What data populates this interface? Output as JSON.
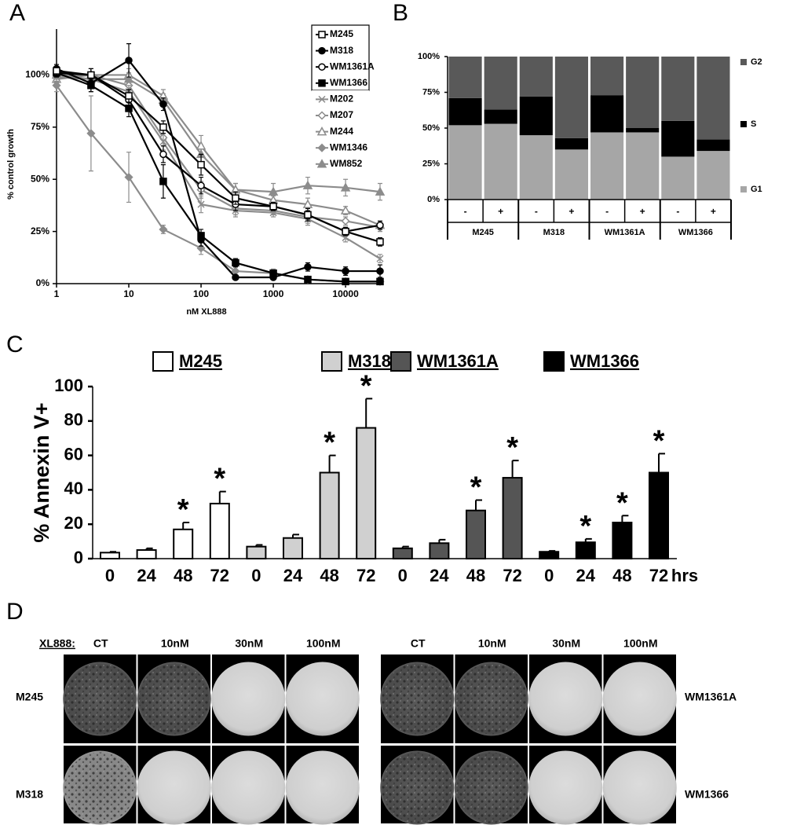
{
  "panels": [
    "A",
    "B",
    "C",
    "D"
  ],
  "chart_data": [
    {
      "type": "line",
      "xlabel": "nM XL888",
      "ylabel": "% control growth",
      "xscale": "log",
      "x": [
        1,
        3,
        10,
        30,
        100,
        300,
        1000,
        3000,
        10000,
        30000
      ],
      "xlim": [
        1,
        30000
      ],
      "xticks": [
        1,
        10,
        100,
        1000,
        10000
      ],
      "ylim": [
        0,
        122
      ],
      "yticks": [
        {
          "value": 0,
          "label": "0%"
        },
        {
          "value": 25,
          "label": "25%"
        },
        {
          "value": 50,
          "label": "50%"
        },
        {
          "value": 75,
          "label": "75%"
        },
        {
          "value": 100,
          "label": "100%"
        }
      ],
      "series": [
        {
          "name": "M245",
          "color": "#000000",
          "marker": "square-open",
          "values": [
            102,
            100,
            90,
            75,
            57,
            41,
            37,
            33,
            25,
            20
          ],
          "errors": [
            2,
            3,
            3,
            3,
            5,
            3,
            2,
            2,
            2,
            2
          ]
        },
        {
          "name": "M318",
          "color": "#000000",
          "marker": "circle-filled",
          "values": [
            103,
            96,
            107,
            86,
            21,
            3,
            3,
            8,
            6,
            6
          ],
          "errors": [
            2,
            4,
            8,
            3,
            3,
            1,
            1,
            2,
            2,
            3
          ]
        },
        {
          "name": "WM1361A",
          "color": "#000000",
          "marker": "circle-open",
          "values": [
            101,
            100,
            88,
            62,
            47,
            38,
            37,
            33,
            25,
            28
          ],
          "errors": [
            2,
            3,
            3,
            4,
            4,
            3,
            2,
            3,
            2,
            2
          ]
        },
        {
          "name": "WM1366",
          "color": "#000000",
          "marker": "square-filled",
          "values": [
            101,
            95,
            84,
            49,
            23,
            10,
            5,
            2,
            1,
            1
          ],
          "errors": [
            2,
            3,
            4,
            8,
            3,
            2,
            1,
            1,
            1,
            1
          ]
        },
        {
          "name": "M202",
          "color": "#8c8c8c",
          "marker": "x",
          "values": [
            99,
            98,
            92,
            68,
            38,
            35,
            34,
            31,
            22,
            12
          ],
          "errors": [
            2,
            3,
            3,
            4,
            4,
            3,
            2,
            3,
            2,
            2
          ]
        },
        {
          "name": "M207",
          "color": "#8c8c8c",
          "marker": "diamond-open",
          "values": [
            100,
            100,
            95,
            70,
            45,
            36,
            35,
            32,
            30,
            27
          ],
          "errors": [
            2,
            3,
            3,
            4,
            4,
            3,
            2,
            3,
            2,
            2
          ]
        },
        {
          "name": "M244",
          "color": "#8c8c8c",
          "marker": "triangle-open",
          "values": [
            98,
            100,
            100,
            90,
            66,
            45,
            40,
            38,
            35,
            28
          ],
          "errors": [
            2,
            3,
            3,
            3,
            5,
            3,
            2,
            3,
            2,
            2
          ]
        },
        {
          "name": "WM1346",
          "color": "#8c8c8c",
          "marker": "diamond-filled",
          "values": [
            95,
            72,
            51,
            26,
            17,
            6,
            5,
            2,
            1,
            1
          ],
          "errors": [
            3,
            18,
            12,
            2,
            3,
            2,
            2,
            1,
            1,
            1
          ]
        },
        {
          "name": "WM852",
          "color": "#8c8c8c",
          "marker": "triangle-filled",
          "values": [
            100,
            98,
            98,
            88,
            62,
            45,
            44,
            47,
            46,
            44
          ],
          "errors": [
            2,
            3,
            3,
            3,
            4,
            3,
            4,
            4,
            4,
            4
          ]
        }
      ]
    },
    {
      "type": "stacked_bar",
      "categories": [
        "-",
        "+",
        "-",
        "+",
        "-",
        "+",
        "-",
        "+"
      ],
      "groups": [
        "M245",
        "M318",
        "WM1361A",
        "WM1366"
      ],
      "ylim": [
        0,
        100
      ],
      "yticks": [
        {
          "value": 0,
          "label": "0%"
        },
        {
          "value": 25,
          "label": "25%"
        },
        {
          "value": 50,
          "label": "50%"
        },
        {
          "value": 75,
          "label": "75%"
        },
        {
          "value": 100,
          "label": "100%"
        }
      ],
      "series": [
        {
          "name": "G1",
          "color": "#a6a6a6",
          "values": [
            52,
            53,
            45,
            35,
            47,
            47,
            30,
            34
          ]
        },
        {
          "name": "S",
          "color": "#000000",
          "values": [
            19,
            10,
            27,
            8,
            26,
            3,
            25,
            8
          ]
        },
        {
          "name": "G2",
          "color": "#595959",
          "values": [
            29,
            37,
            28,
            57,
            27,
            50,
            45,
            58
          ]
        }
      ]
    },
    {
      "type": "bar",
      "ylabel": "% Annexin V+",
      "xunit": "hrs",
      "asterisk": "*",
      "categories": [
        "0",
        "24",
        "48",
        "72"
      ],
      "ylim": [
        0,
        100
      ],
      "yticks": [
        0,
        20,
        40,
        60,
        80,
        100
      ],
      "series": [
        {
          "name": "M245",
          "color": "#ffffff",
          "values": [
            3.5,
            5,
            17,
            32
          ],
          "errors": [
            0.5,
            1,
            4,
            7
          ],
          "marked": [
            false,
            false,
            true,
            true
          ]
        },
        {
          "name": "M318",
          "color": "#d0d0d0",
          "values": [
            7,
            12,
            50,
            76
          ],
          "errors": [
            1,
            2,
            10,
            17
          ],
          "marked": [
            false,
            false,
            true,
            true
          ]
        },
        {
          "name": "WM1361A",
          "color": "#555555",
          "values": [
            6,
            9,
            28,
            47
          ],
          "errors": [
            1,
            2,
            6,
            10
          ],
          "marked": [
            false,
            false,
            true,
            true
          ]
        },
        {
          "name": "WM1366",
          "color": "#000000",
          "values": [
            4,
            9.5,
            21,
            50
          ],
          "errors": [
            0.5,
            2,
            4,
            11
          ],
          "marked": [
            false,
            true,
            true,
            true
          ]
        }
      ]
    }
  ],
  "panel_d": {
    "treatment_label": "XL888:",
    "columns": [
      "CT",
      "10nM",
      "30nM",
      "100nM"
    ],
    "left_rows": [
      "M245",
      "M318"
    ],
    "right_rows": [
      "WM1361A",
      "WM1366"
    ]
  }
}
